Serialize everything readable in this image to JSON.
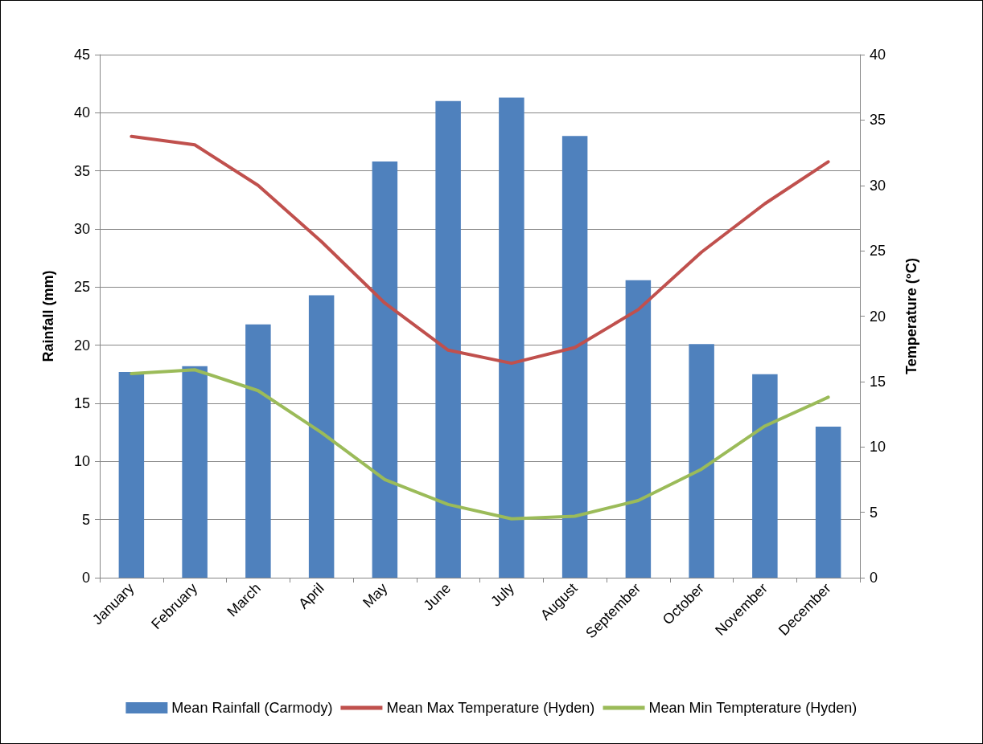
{
  "chart_data": {
    "type": "bar",
    "categories": [
      "January",
      "February",
      "March",
      "April",
      "May",
      "June",
      "July",
      "August",
      "September",
      "October",
      "November",
      "December"
    ],
    "series": [
      {
        "name": "Mean Rainfall (Carmody)",
        "color": "#4f81bd",
        "values": [
          17.7,
          18.2,
          21.8,
          24.3,
          35.8,
          41.0,
          41.3,
          38.0,
          25.6,
          20.1,
          17.5,
          13.0
        ]
      },
      {
        "name": "Mean Max Temperature (Hyden)",
        "type": "line",
        "axis": "y2",
        "color": "#c0504d",
        "values": [
          33.75,
          33.1,
          30.0,
          25.7,
          21.0,
          17.4,
          16.4,
          17.6,
          20.5,
          24.9,
          28.6,
          31.8
        ]
      },
      {
        "name": "Mean Min Tempterature (Hyden)",
        "type": "line",
        "axis": "y2",
        "color": "#9bbb59",
        "values": [
          15.6,
          15.9,
          14.3,
          11.1,
          7.5,
          5.6,
          4.5,
          4.7,
          5.9,
          8.3,
          11.6,
          13.8
        ]
      }
    ],
    "ylabel": "Rainfall (mm)",
    "y2label": "Temperature (°C)",
    "ylim": [
      0,
      45
    ],
    "yticks": [
      0,
      5,
      10,
      15,
      20,
      25,
      30,
      35,
      40,
      45
    ],
    "y2lim": [
      0,
      40
    ],
    "y2ticks": [
      0,
      5,
      10,
      15,
      20,
      25,
      30,
      35,
      40
    ],
    "grid": "y",
    "legend": "bottom",
    "marker": "none",
    "line_style": "solid"
  }
}
